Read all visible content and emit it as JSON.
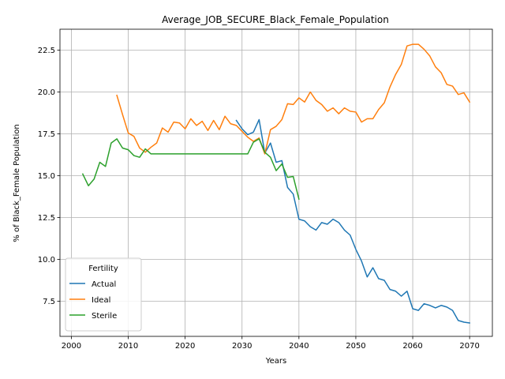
{
  "chart_data": {
    "type": "line",
    "title": "Average_JOB_SECURE_Black_Female_Population",
    "xlabel": "Years",
    "ylabel": "% of Black_Female Population",
    "xlim": [
      1998,
      2074
    ],
    "ylim": [
      5.4,
      23.75
    ],
    "xticks": [
      2000,
      2010,
      2020,
      2030,
      2040,
      2050,
      2060,
      2070
    ],
    "yticks": [
      7.5,
      10.0,
      12.5,
      15.0,
      17.5,
      20.0,
      22.5
    ],
    "grid": true,
    "legend": {
      "title": "Fertility",
      "placement": "lower-left"
    },
    "series": [
      {
        "name": "Actual",
        "color": "#1f77b4",
        "x": [
          2029,
          2030,
          2031,
          2032,
          2033,
          2034,
          2035,
          2036,
          2037,
          2038,
          2039,
          2040,
          2041,
          2042,
          2043,
          2044,
          2045,
          2046,
          2047,
          2048,
          2049,
          2050,
          2051,
          2052,
          2053,
          2054,
          2055,
          2056,
          2057,
          2058,
          2059,
          2060,
          2061,
          2062,
          2063,
          2064,
          2065,
          2066,
          2067,
          2068,
          2069,
          2070
        ],
        "y": [
          18.3,
          17.8,
          17.45,
          17.6,
          18.35,
          16.35,
          16.95,
          15.8,
          15.9,
          14.3,
          13.9,
          12.4,
          12.3,
          11.95,
          11.75,
          12.2,
          12.1,
          12.4,
          12.2,
          11.75,
          11.45,
          10.6,
          9.9,
          8.95,
          9.5,
          8.85,
          8.75,
          8.2,
          8.1,
          7.8,
          8.1,
          7.05,
          6.95,
          7.35,
          7.25,
          7.1,
          7.25,
          7.15,
          6.95,
          6.35,
          6.25,
          6.2
        ]
      },
      {
        "name": "Ideal",
        "color": "#ff7f0e",
        "x": [
          2008,
          2009,
          2010,
          2011,
          2012,
          2013,
          2014,
          2015,
          2016,
          2017,
          2018,
          2019,
          2020,
          2021,
          2022,
          2023,
          2024,
          2025,
          2026,
          2027,
          2028,
          2029,
          2030,
          2031,
          2032,
          2033,
          2034,
          2035,
          2036,
          2037,
          2038,
          2039,
          2040,
          2041,
          2042,
          2043,
          2044,
          2045,
          2046,
          2047,
          2048,
          2049,
          2050,
          2051,
          2052,
          2053,
          2054,
          2055,
          2056,
          2057,
          2058,
          2059,
          2060,
          2061,
          2062,
          2063,
          2064,
          2065,
          2066,
          2067,
          2068,
          2069,
          2070
        ],
        "y": [
          19.8,
          18.65,
          17.55,
          17.35,
          16.65,
          16.4,
          16.7,
          16.95,
          17.85,
          17.6,
          18.2,
          18.15,
          17.8,
          18.4,
          18.0,
          18.25,
          17.7,
          18.3,
          17.75,
          18.55,
          18.1,
          18.0,
          17.65,
          17.3,
          17.05,
          17.25,
          16.3,
          17.75,
          17.95,
          18.35,
          19.3,
          19.25,
          19.65,
          19.4,
          20.0,
          19.5,
          19.25,
          18.85,
          19.05,
          18.7,
          19.05,
          18.85,
          18.8,
          18.2,
          18.4,
          18.4,
          18.95,
          19.35,
          20.3,
          21.05,
          21.65,
          22.75,
          22.85,
          22.85,
          22.55,
          22.15,
          21.5,
          21.15,
          20.45,
          20.35,
          19.85,
          19.95,
          19.4
        ]
      },
      {
        "name": "Sterile",
        "color": "#2ca02c",
        "x": [
          2002,
          2003,
          2004,
          2005,
          2006,
          2007,
          2008,
          2009,
          2010,
          2011,
          2012,
          2013,
          2014,
          2015,
          2016,
          2017,
          2018,
          2019,
          2020,
          2021,
          2022,
          2023,
          2024,
          2025,
          2026,
          2027,
          2028,
          2029,
          2030,
          2031,
          2032,
          2033,
          2034,
          2035,
          2036,
          2037,
          2038,
          2039,
          2040
        ],
        "y": [
          15.1,
          14.4,
          14.8,
          15.8,
          15.55,
          16.95,
          17.2,
          16.65,
          16.55,
          16.2,
          16.1,
          16.6,
          16.3,
          16.3,
          16.3,
          16.3,
          16.3,
          16.3,
          16.3,
          16.3,
          16.3,
          16.3,
          16.3,
          16.3,
          16.3,
          16.3,
          16.3,
          16.3,
          16.3,
          16.3,
          17.0,
          17.2,
          16.4,
          16.1,
          15.3,
          15.7,
          14.9,
          14.95,
          13.6
        ]
      }
    ]
  }
}
